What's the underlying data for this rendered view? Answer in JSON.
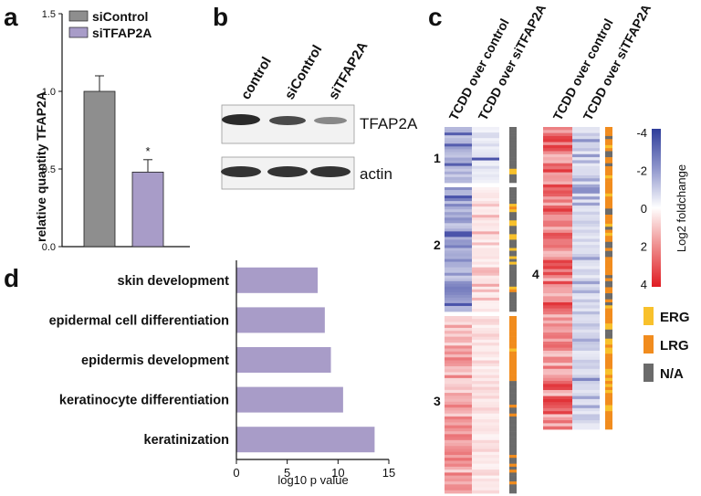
{
  "panels": {
    "a": "a",
    "b": "b",
    "c": "c",
    "d": "d"
  },
  "chart_data": [
    {
      "type": "bar",
      "panel": "a",
      "categories": [
        "siControl",
        "siTFAP2A"
      ],
      "values": [
        1.0,
        0.48
      ],
      "errors": [
        0.1,
        0.08
      ],
      "ylabel": "relative quantity TFAP2A",
      "ylim": [
        0,
        1.5
      ],
      "yticks": [
        "0.0",
        "0.5",
        "1.0",
        "1.5"
      ],
      "legend": [
        "siControl",
        "siTFAP2A"
      ],
      "significance": "*",
      "colors": [
        "#8e8e8e",
        "#a89cc8"
      ]
    },
    {
      "type": "bar",
      "panel": "d",
      "orientation": "horizontal",
      "categories": [
        "skin development",
        "epidermal cell differentiation",
        "epidermis development",
        "keratinocyte differentiation",
        "keratinization"
      ],
      "values": [
        8.0,
        8.7,
        9.3,
        10.5,
        13.6
      ],
      "xlabel": "log10 p value",
      "xlim": [
        0,
        15
      ],
      "xticks": [
        "0",
        "5",
        "10",
        "15"
      ],
      "color": "#a89cc8"
    }
  ],
  "blot": {
    "lanes": [
      "control",
      "siControl",
      "siTFAP2A"
    ],
    "bands": [
      "TFAP2A",
      "actin"
    ]
  },
  "heatmap": {
    "columns": [
      "TCDD over control",
      "TCDD over siTFAP2A"
    ],
    "clusters": [
      "1",
      "2",
      "3",
      "4"
    ],
    "colorbar_label": "Log2 foldchange",
    "colorbar_ticks": [
      "-4",
      "-2",
      "0",
      "2",
      "4"
    ],
    "legend": [
      "ERG",
      "LRG",
      "N/A"
    ],
    "legend_colors": [
      "#f8c12c",
      "#f18c1e",
      "#6b6b6b"
    ]
  }
}
